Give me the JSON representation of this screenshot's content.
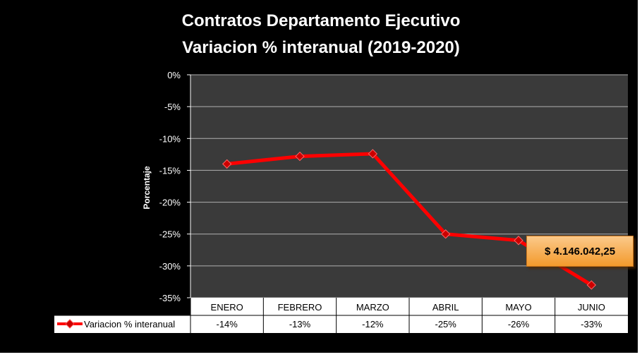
{
  "chart_data": {
    "type": "line",
    "title": "Contratos Departamento Ejecutivo",
    "subtitle": "Variacion % interanual (2019-2020)",
    "xlabel": "",
    "ylabel": "Porcentaje",
    "categories": [
      "ENERO",
      "FEBRERO",
      "MARZO",
      "ABRIL",
      "MAYO",
      "JUNIO"
    ],
    "series": [
      {
        "name": "Variacion % interanual",
        "values": [
          -14,
          -12.8,
          -12.4,
          -25,
          -26,
          -33
        ],
        "labels": [
          "-14%",
          "-13%",
          "-12%",
          "-25%",
          "-26%",
          "-33%"
        ],
        "color": "#ff0000"
      }
    ],
    "ylim": [
      -35,
      0
    ],
    "yticks": [
      0,
      -5,
      -10,
      -15,
      -20,
      -25,
      -30,
      -35
    ],
    "yticklabels": [
      "0%",
      "-5%",
      "-10%",
      "-15%",
      "-20%",
      "-25%",
      "-30%",
      "-35%"
    ],
    "grid": true,
    "legend": "data-table",
    "annotation": "$  4.146.042,25",
    "colors": {
      "plot_bg": "#3a3a3a",
      "grid": "#b0b0b0",
      "line": "#ff0000",
      "callout": "#f5a443"
    }
  }
}
